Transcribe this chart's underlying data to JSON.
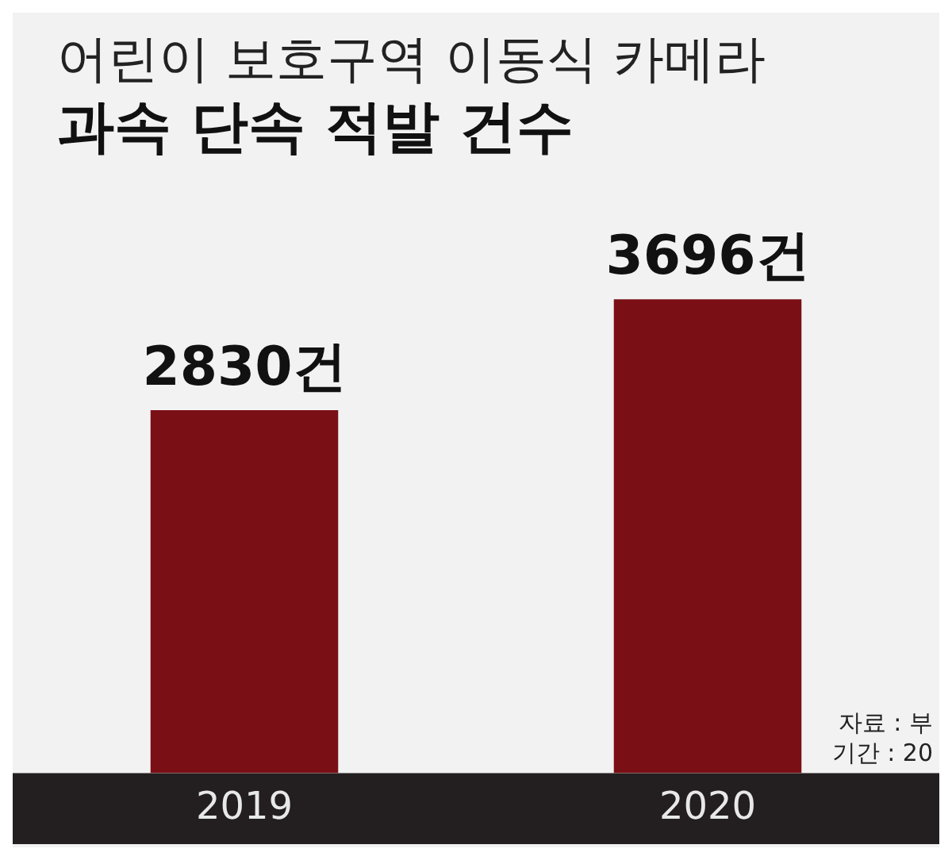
{
  "chart_data": {
    "type": "bar",
    "title": "어린이 보호구역 이동식 카메라",
    "subtitle": "과속 단속 적발 건수",
    "categories": [
      "2019",
      "2020"
    ],
    "values": [
      2830,
      3696
    ],
    "value_labels": [
      "2830건",
      "3696건"
    ],
    "color": "#7a0f16",
    "annotations": [
      "자료 : 부",
      "기간 : 20"
    ],
    "grid": false,
    "legend": false
  }
}
